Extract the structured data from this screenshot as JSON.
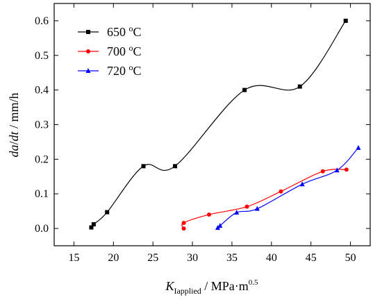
{
  "chart_data": {
    "type": "scatter",
    "xlabel": {
      "main": "K",
      "sub": "Iapplied",
      "rest": " / MPa·m",
      "sup": "0.5"
    },
    "ylabel": {
      "part1": "da",
      "part2": "/",
      "part3": "dt",
      "part4": " / mm/h"
    },
    "xlim": [
      12.5,
      52.5
    ],
    "ylim": [
      -0.05,
      0.65
    ],
    "xticks": [
      15,
      20,
      25,
      30,
      35,
      40,
      45,
      50
    ],
    "yticks": [
      0.0,
      0.1,
      0.2,
      0.3,
      0.4,
      0.5,
      0.6
    ],
    "ytick_labels": [
      "0.0",
      "0.1",
      "0.2",
      "0.3",
      "0.4",
      "0.5",
      "0.6"
    ],
    "grid": false,
    "legend": "top-left",
    "series": [
      {
        "name": "650 °C",
        "name_parts": {
          "num": "650 ",
          "sup": "o",
          "unit": "C"
        },
        "color": "#000000",
        "marker": "square",
        "x": [
          17.2,
          17.5,
          19.2,
          23.8,
          27.8,
          36.6,
          43.6,
          49.4
        ],
        "y": [
          0.003,
          0.012,
          0.047,
          0.18,
          0.18,
          0.4,
          0.41,
          0.6
        ]
      },
      {
        "name": "700 °C",
        "name_parts": {
          "num": "700 ",
          "sup": "o",
          "unit": "C"
        },
        "color": "#ff0000",
        "marker": "circle",
        "x": [
          28.9,
          28.9,
          32.1,
          36.9,
          41.2,
          46.5,
          49.5
        ],
        "y": [
          0.0,
          0.016,
          0.04,
          0.063,
          0.107,
          0.165,
          0.17
        ]
      },
      {
        "name": "720 °C",
        "name_parts": {
          "num": "720 ",
          "sup": "o",
          "unit": "C"
        },
        "color": "#0000ff",
        "marker": "triangle",
        "x": [
          33.2,
          33.5,
          35.6,
          38.2,
          43.9,
          48.3,
          51.0
        ],
        "y": [
          0.002,
          0.008,
          0.046,
          0.057,
          0.128,
          0.168,
          0.233
        ]
      }
    ]
  }
}
